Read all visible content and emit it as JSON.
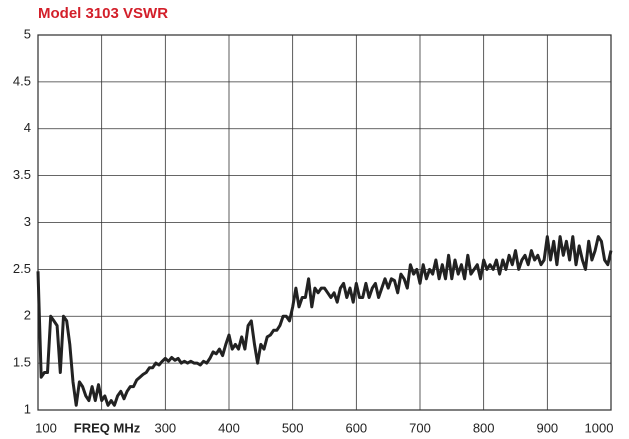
{
  "chart_data": {
    "type": "line",
    "title": "Model 3103 VSWR",
    "x_label": "FREQ MHz",
    "x": [
      100,
      105,
      110,
      115,
      120,
      125,
      130,
      135,
      140,
      145,
      150,
      155,
      160,
      165,
      170,
      175,
      180,
      185,
      190,
      195,
      200,
      205,
      210,
      215,
      220,
      225,
      230,
      235,
      240,
      245,
      250,
      255,
      260,
      265,
      270,
      275,
      280,
      285,
      290,
      295,
      300,
      305,
      310,
      315,
      320,
      325,
      330,
      335,
      340,
      345,
      350,
      355,
      360,
      365,
      370,
      375,
      380,
      385,
      390,
      395,
      400,
      405,
      410,
      415,
      420,
      425,
      430,
      435,
      440,
      445,
      450,
      455,
      460,
      465,
      470,
      475,
      480,
      485,
      490,
      495,
      500,
      505,
      510,
      515,
      520,
      525,
      530,
      535,
      540,
      545,
      550,
      555,
      560,
      565,
      570,
      575,
      580,
      585,
      590,
      595,
      600,
      605,
      610,
      615,
      620,
      625,
      630,
      635,
      640,
      645,
      650,
      655,
      660,
      665,
      670,
      675,
      680,
      685,
      690,
      695,
      700,
      705,
      710,
      715,
      720,
      725,
      730,
      735,
      740,
      745,
      750,
      755,
      760,
      765,
      770,
      775,
      780,
      785,
      790,
      795,
      800,
      805,
      810,
      815,
      820,
      825,
      830,
      835,
      840,
      845,
      850,
      855,
      860,
      865,
      870,
      875,
      880,
      885,
      890,
      895,
      900,
      905,
      910,
      915,
      920,
      925,
      930,
      935,
      940,
      945,
      950,
      955,
      960,
      965,
      970,
      975,
      980,
      985,
      990,
      995,
      1000
    ],
    "series": [
      {
        "name": "VSWR",
        "color": "#222222",
        "values": [
          2.48,
          1.35,
          1.4,
          1.4,
          2.0,
          1.95,
          1.9,
          1.4,
          2.0,
          1.95,
          1.7,
          1.3,
          1.05,
          1.3,
          1.25,
          1.15,
          1.1,
          1.25,
          1.1,
          1.27,
          1.1,
          1.15,
          1.05,
          1.1,
          1.05,
          1.15,
          1.2,
          1.12,
          1.2,
          1.25,
          1.25,
          1.32,
          1.35,
          1.38,
          1.4,
          1.45,
          1.45,
          1.5,
          1.48,
          1.52,
          1.55,
          1.52,
          1.56,
          1.53,
          1.55,
          1.5,
          1.52,
          1.5,
          1.52,
          1.5,
          1.5,
          1.48,
          1.52,
          1.5,
          1.55,
          1.62,
          1.6,
          1.65,
          1.58,
          1.7,
          1.8,
          1.65,
          1.7,
          1.65,
          1.78,
          1.65,
          1.9,
          1.95,
          1.7,
          1.5,
          1.7,
          1.65,
          1.78,
          1.8,
          1.85,
          1.85,
          1.9,
          2.0,
          2.0,
          1.95,
          2.1,
          2.3,
          2.1,
          2.2,
          2.2,
          2.4,
          2.1,
          2.3,
          2.25,
          2.3,
          2.3,
          2.25,
          2.2,
          2.25,
          2.15,
          2.3,
          2.35,
          2.2,
          2.3,
          2.15,
          2.35,
          2.2,
          2.2,
          2.35,
          2.2,
          2.3,
          2.35,
          2.2,
          2.3,
          2.4,
          2.3,
          2.4,
          2.38,
          2.25,
          2.45,
          2.4,
          2.3,
          2.55,
          2.45,
          2.5,
          2.35,
          2.55,
          2.4,
          2.5,
          2.45,
          2.6,
          2.4,
          2.55,
          2.4,
          2.65,
          2.4,
          2.6,
          2.45,
          2.55,
          2.4,
          2.65,
          2.45,
          2.5,
          2.55,
          2.4,
          2.6,
          2.5,
          2.55,
          2.5,
          2.6,
          2.45,
          2.6,
          2.5,
          2.65,
          2.55,
          2.7,
          2.5,
          2.6,
          2.65,
          2.55,
          2.7,
          2.6,
          2.65,
          2.55,
          2.6,
          2.85,
          2.6,
          2.8,
          2.55,
          2.85,
          2.65,
          2.8,
          2.6,
          2.85,
          2.55,
          2.75,
          2.6,
          2.5,
          2.8,
          2.6,
          2.7,
          2.85,
          2.8,
          2.6,
          2.55,
          2.7
        ]
      }
    ],
    "xlim": [
      100,
      1000
    ],
    "xticks": [
      100,
      300,
      400,
      500,
      600,
      700,
      800,
      900,
      1000
    ],
    "xgrid": [
      100,
      200,
      300,
      400,
      500,
      600,
      700,
      800,
      900,
      1000
    ],
    "ylim": [
      1,
      5
    ],
    "yticks": [
      1,
      1.5,
      2,
      2.5,
      3,
      3.5,
      4,
      4.5,
      5
    ],
    "grid": true
  }
}
